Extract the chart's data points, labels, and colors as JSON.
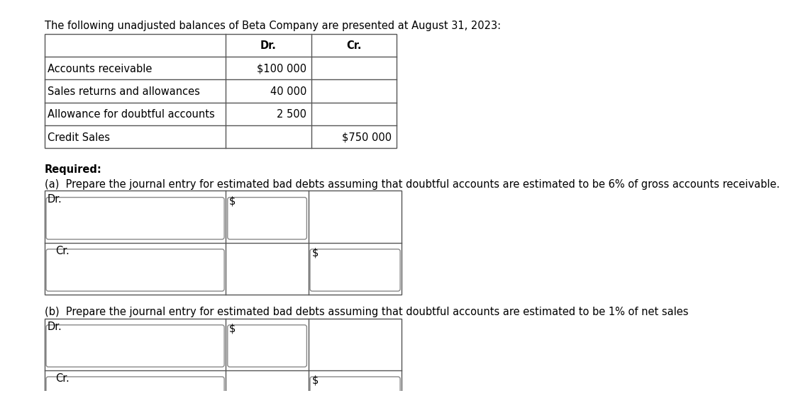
{
  "title": "The following unadjusted balances of Beta Company are presented at August 31, 2023:",
  "table_rows": [
    [
      "Accounts receivable",
      "$100 000",
      ""
    ],
    [
      "Sales returns and allowances",
      "40 000",
      ""
    ],
    [
      "Allowance for doubtful accounts",
      "2 500",
      ""
    ],
    [
      "Credit Sales",
      "",
      "$750 000"
    ]
  ],
  "required_label": "Required:",
  "part_a_text": "(a)  Prepare the journal entry for estimated bad debts assuming that doubtful accounts are estimated to be 6% of gross accounts receivable.",
  "part_b_text": "(b)  Prepare the journal entry for estimated bad debts assuming that doubtful accounts are estimated to be 1% of net sales",
  "dr_label": "Dr.",
  "cr_label": "Cr.",
  "dollar_sign": "$",
  "bg_color": "#ffffff",
  "text_color": "#000000",
  "title_font_size": 10.5,
  "table_font_size": 10.5,
  "label_font_size": 10.5,
  "box_border_color": "#888888",
  "table_border_color": "#555555"
}
